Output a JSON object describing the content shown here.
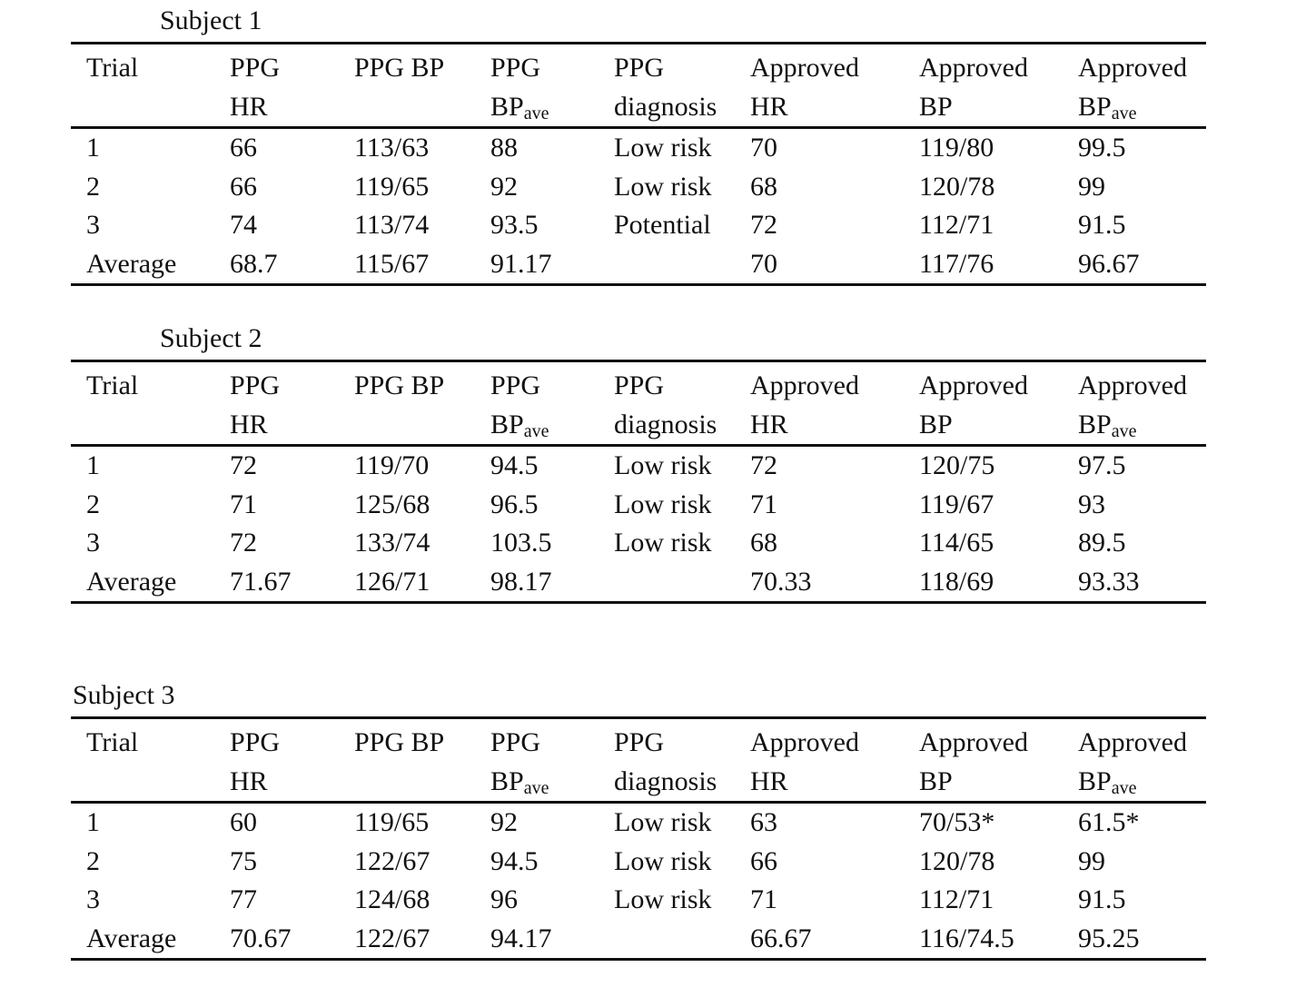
{
  "header": {
    "trial": "Trial",
    "ppg_hr": [
      "PPG",
      "HR"
    ],
    "ppg_bp": "PPG BP",
    "ppg_bpave": [
      "PPG",
      "BP",
      "ave"
    ],
    "ppg_diagnosis": [
      "PPG",
      "diagnosis"
    ],
    "approved_hr": [
      "Approved",
      "HR"
    ],
    "approved_bp": [
      "Approved",
      "BP"
    ],
    "approved_bpave": [
      "Approved",
      "BP",
      "ave"
    ]
  },
  "subjects": [
    {
      "title": "Subject 1",
      "rows": [
        [
          "1",
          "66",
          "113/63",
          "88",
          "Low risk",
          "70",
          "119/80",
          "99.5"
        ],
        [
          "2",
          "66",
          "119/65",
          "92",
          "Low risk",
          "68",
          "120/78",
          "99"
        ],
        [
          "3",
          "74",
          "113/74",
          "93.5",
          "Potential",
          "72",
          "112/71",
          "91.5"
        ],
        [
          "Average",
          "68.7",
          "115/67",
          "91.17",
          "",
          "70",
          "117/76",
          "96.67"
        ]
      ]
    },
    {
      "title": "Subject 2",
      "rows": [
        [
          "1",
          "72",
          "119/70",
          "94.5",
          "Low risk",
          "72",
          "120/75",
          "97.5"
        ],
        [
          "2",
          "71",
          "125/68",
          "96.5",
          "Low risk",
          "71",
          "119/67",
          "93"
        ],
        [
          "3",
          "72",
          "133/74",
          "103.5",
          "Low risk",
          "68",
          "114/65",
          "89.5"
        ],
        [
          "Average",
          "71.67",
          "126/71",
          "98.17",
          "",
          "70.33",
          "118/69",
          "93.33"
        ]
      ]
    },
    {
      "title": "Subject 3",
      "rows": [
        [
          "1",
          "60",
          "119/65",
          "92",
          "Low risk",
          "63",
          "70/53*",
          "61.5*"
        ],
        [
          "2",
          "75",
          "122/67",
          "94.5",
          "Low risk",
          "66",
          "120/78",
          "99"
        ],
        [
          "3",
          "77",
          "124/68",
          "96",
          "Low risk",
          "71",
          "112/71",
          "91.5"
        ],
        [
          "Average",
          "70.67",
          "122/67",
          "94.17",
          "",
          "66.67",
          "116/74.5",
          "95.25"
        ]
      ]
    }
  ]
}
